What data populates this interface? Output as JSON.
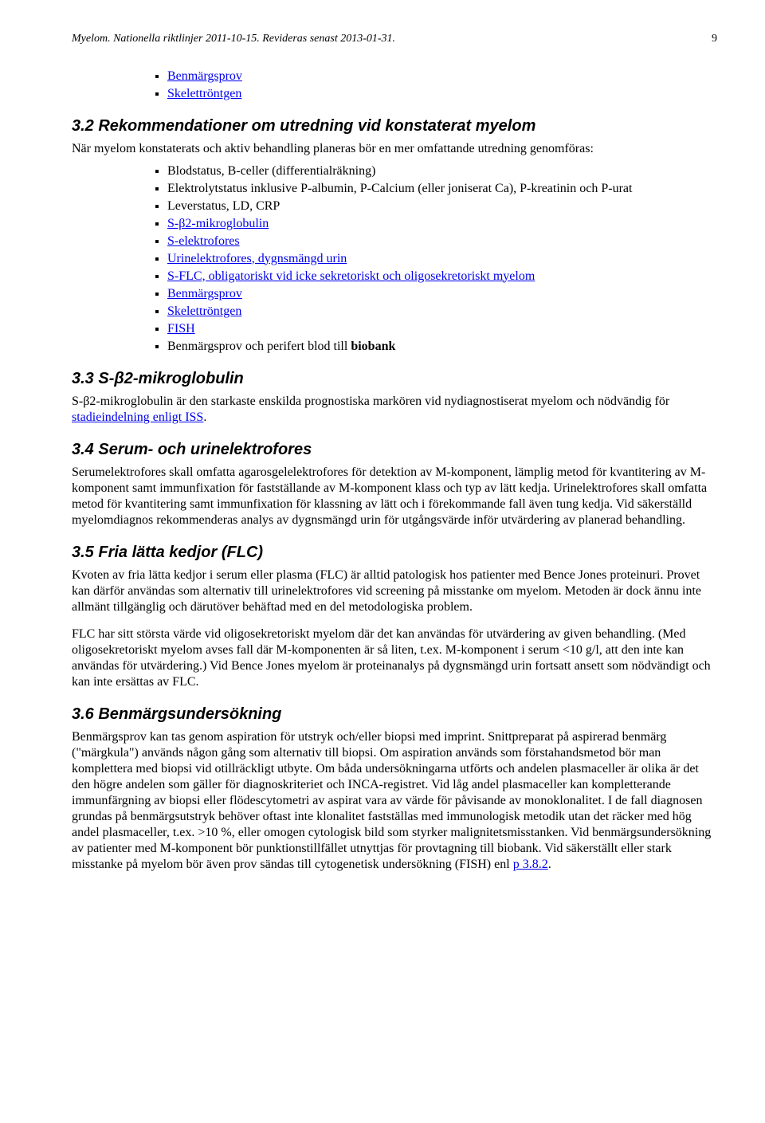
{
  "header": {
    "text": "Myelom. Nationella riktlinjer 2011-10-15. Revideras senast 2013-01-31.",
    "pageNumber": "9"
  },
  "topList": {
    "items": [
      {
        "text": "Benmärgsprov",
        "link": true
      },
      {
        "text": "Skelettröntgen",
        "link": true
      }
    ]
  },
  "sec32": {
    "heading": "3.2  Rekommendationer om utredning vid konstaterat myelom",
    "intro": "När myelom konstaterats och aktiv behandling planeras bör en mer omfattande utredning genomföras:",
    "items": [
      {
        "text": "Blodstatus, B-celler (differentialräkning)",
        "link": false
      },
      {
        "text": "Elektrolytstatus inklusive P-albumin, P-Calcium (eller joniserat Ca), P-kreatinin och P-urat",
        "link": false
      },
      {
        "text": "Leverstatus, LD, CRP",
        "link": false
      },
      {
        "text": "S-β2-mikroglobulin",
        "link": true
      },
      {
        "text": "S-elektrofores",
        "link": true
      },
      {
        "text": "Urinelektrofores, dygnsmängd urin",
        "link": true
      },
      {
        "text": "S-FLC, obligatoriskt vid icke sekretoriskt och oligosekretoriskt myelom",
        "link": true
      },
      {
        "text": "Benmärgsprov",
        "link": true
      },
      {
        "text": "Skelettröntgen",
        "link": true
      },
      {
        "text": "FISH",
        "link": true
      },
      {
        "prefix": "Benmärgsprov och perifert blod till ",
        "bold": "biobank",
        "link": false
      }
    ]
  },
  "sec33": {
    "heading": "3.3  S-β2-mikroglobulin",
    "body_pre": "S-β2-mikroglobulin är den starkaste enskilda prognostiska markören vid nydiagnostiserat myelom och nödvändig för ",
    "link": "stadieindelning enligt ISS",
    "body_post": "."
  },
  "sec34": {
    "heading": "3.4  Serum- och urinelektrofores",
    "body": "Serumelektrofores skall omfatta agarosgelelektrofores för detektion av M-komponent, lämplig metod för kvantitering av M-komponent samt immunfixation för fastställande av M-komponent klass och typ av lätt kedja. Urinelektrofores skall omfatta metod för kvantitering samt immunfixation för klassning av lätt och i förekommande fall även tung kedja. Vid säkerställd myelomdiagnos rekommenderas analys av dygnsmängd urin för utgångsvärde inför utvärdering av planerad behandling."
  },
  "sec35": {
    "heading": "3.5  Fria lätta kedjor (FLC)",
    "p1": "Kvoten av fria lätta kedjor i serum eller plasma (FLC) är alltid patologisk hos patienter med Bence Jones proteinuri. Provet kan därför användas som alternativ till urinelektrofores vid screening på misstanke om myelom. Metoden är dock ännu inte allmänt tillgänglig och därutöver behäftad med en del metodologiska problem.",
    "p2": "FLC har sitt största värde vid oligosekretoriskt myelom där det kan användas för utvärdering av given behandling. (Med oligosekretoriskt myelom avses fall där M-komponenten är så liten, t.ex. M-komponent i serum <10 g/l, att den inte kan användas för utvärdering.) Vid Bence Jones myelom är proteinanalys på dygnsmängd urin fortsatt ansett som nödvändigt och kan inte ersättas av FLC."
  },
  "sec36": {
    "heading": "3.6  Benmärgsundersökning",
    "body_pre": "Benmärgsprov kan tas genom aspiration för utstryk och/eller biopsi med imprint. Snittpreparat på aspirerad benmärg (\"märgkula\") används någon gång som alternativ till biopsi. Om aspiration används som förstahandsmetod bör man komplettera med biopsi vid otillräckligt utbyte. Om båda undersökningarna utförts och andelen plasmaceller är olika är det den högre andelen som gäller för diagnoskriteriet och INCA-registret. Vid låg andel plasmaceller kan kompletterande immunfärgning av biopsi eller flödescytometri av aspirat vara av värde för påvisande av monoklonalitet. I de fall diagnosen grundas på benmärgsutstryk behöver oftast inte klonalitet fastställas med immunologisk metodik utan det räcker med hög andel plasmaceller, t.ex. >10 %, eller omogen cytologisk bild som styrker malignitetsmisstanken. Vid benmärgsundersökning av patienter med M-komponent bör punktionstillfället utnyttjas för provtagning till biobank. Vid säkerställt eller stark misstanke på myelom bör även prov sändas till cytogenetisk undersökning (FISH) enl ",
    "link": "p 3.8.2",
    "body_post": "."
  }
}
